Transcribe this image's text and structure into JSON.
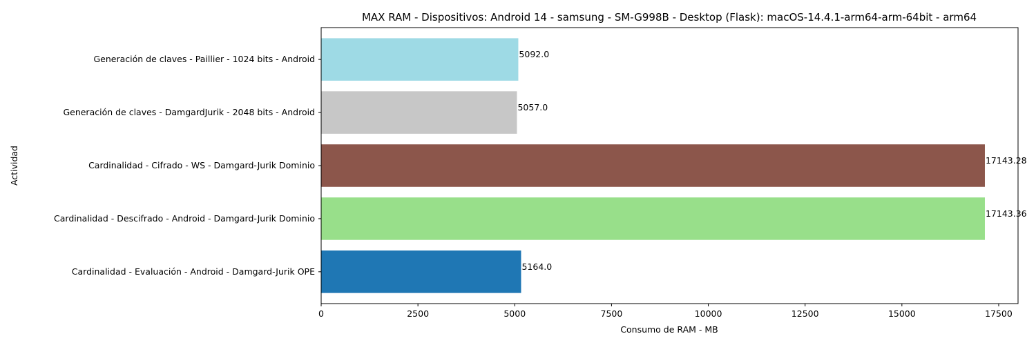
{
  "chart_data": {
    "type": "bar",
    "orientation": "horizontal",
    "title": "MAX RAM - Dispositivos: Android 14 - samsung - SM-G998B - Desktop (Flask): macOS-14.4.1-arm64-arm-64bit - arm64",
    "xlabel": "Consumo de RAM - MB",
    "ylabel": "Actividad",
    "xlim": [
      0,
      18000
    ],
    "xticks": [
      0,
      2500,
      5000,
      7500,
      10000,
      12500,
      15000,
      17500
    ],
    "xtick_labels": [
      "0",
      "2500",
      "5000",
      "7500",
      "10000",
      "12500",
      "15000",
      "17500"
    ],
    "grid": false,
    "categories": [
      "Generación de claves - Paillier - 1024 bits - Android",
      "Generación de claves - DamgardJurik - 2048 bits - Android",
      "Cardinalidad - Cifrado - WS - Damgard-Jurik Dominio",
      "Cardinalidad - Descifrado - Android - Damgard-Jurik Dominio",
      "Cardinalidad - Evaluación - Android - Damgard-Jurik OPE"
    ],
    "values": [
      5092.0,
      5057.0,
      17143.28,
      17143.36,
      5164.0
    ],
    "value_labels": [
      "5092.0",
      "5057.0",
      "17143.28",
      "17143.36",
      "5164.0"
    ],
    "colors": [
      "#9edae5",
      "#c7c7c7",
      "#8c564b",
      "#98df8a",
      "#1f77b4"
    ]
  }
}
